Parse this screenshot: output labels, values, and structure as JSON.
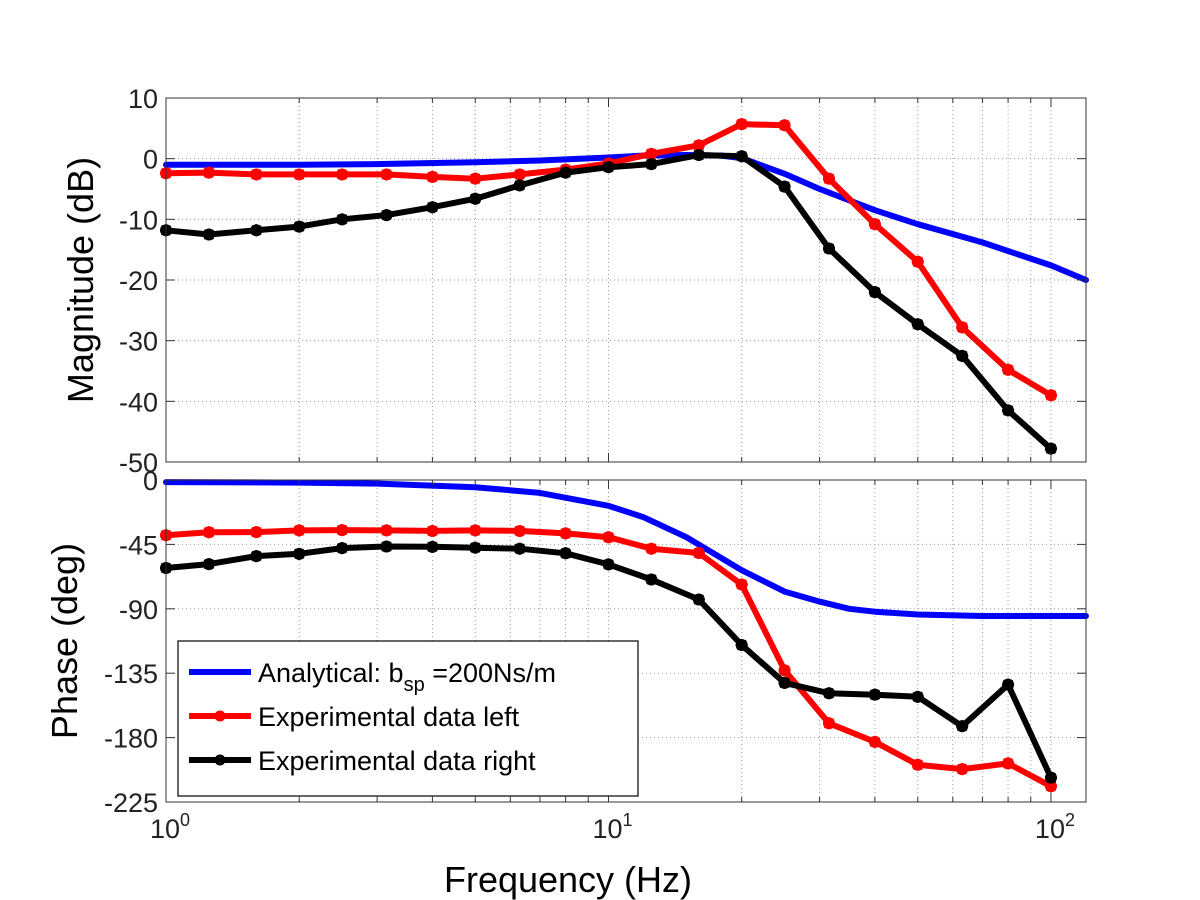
{
  "chart_data": [
    {
      "type": "line",
      "panel": "magnitude",
      "ylabel": "Magnitude (dB)",
      "xlabel": "",
      "xscale": "log",
      "xlim": [
        1,
        120
      ],
      "ylim": [
        -50,
        10
      ],
      "yticks": [
        10,
        0,
        -10,
        -20,
        -30,
        -40,
        -50
      ],
      "grid": true,
      "series": [
        {
          "name": "Analytical: b_sp =200Ns/m",
          "color": "#0000ff",
          "markers": false,
          "points": [
            [
              1,
              -1.0
            ],
            [
              2,
              -1.0
            ],
            [
              3,
              -0.9
            ],
            [
              5,
              -0.6
            ],
            [
              7,
              -0.3
            ],
            [
              10,
              0.2
            ],
            [
              12,
              0.5
            ],
            [
              15,
              0.6
            ],
            [
              18,
              0.5
            ],
            [
              20,
              0.1
            ],
            [
              25,
              -2.5
            ],
            [
              30,
              -5.0
            ],
            [
              40,
              -8.5
            ],
            [
              50,
              -10.8
            ],
            [
              70,
              -13.8
            ],
            [
              100,
              -17.6
            ],
            [
              120,
              -20.0
            ]
          ]
        },
        {
          "name": "Experimental data left",
          "color": "#ff0000",
          "markers": true,
          "points": [
            [
              1,
              -2.4
            ],
            [
              1.25,
              -2.3
            ],
            [
              1.6,
              -2.6
            ],
            [
              2,
              -2.6
            ],
            [
              2.5,
              -2.6
            ],
            [
              3.15,
              -2.6
            ],
            [
              4,
              -3.0
            ],
            [
              5,
              -3.3
            ],
            [
              6.3,
              -2.6
            ],
            [
              8,
              -1.8
            ],
            [
              10,
              -0.8
            ],
            [
              12.5,
              0.8
            ],
            [
              16,
              2.2
            ],
            [
              20,
              5.7
            ],
            [
              25,
              5.5
            ],
            [
              31.5,
              -3.3
            ],
            [
              40,
              -10.8
            ],
            [
              50,
              -17.0
            ],
            [
              63,
              -27.8
            ],
            [
              80,
              -34.8
            ],
            [
              100,
              -39.0
            ]
          ]
        },
        {
          "name": "Experimental data right",
          "color": "#000000",
          "markers": true,
          "points": [
            [
              1,
              -11.8
            ],
            [
              1.25,
              -12.5
            ],
            [
              1.6,
              -11.8
            ],
            [
              2,
              -11.2
            ],
            [
              2.5,
              -10.0
            ],
            [
              3.15,
              -9.3
            ],
            [
              4,
              -8.0
            ],
            [
              5,
              -6.6
            ],
            [
              6.3,
              -4.4
            ],
            [
              8,
              -2.3
            ],
            [
              10,
              -1.4
            ],
            [
              12.5,
              -0.9
            ],
            [
              16,
              0.6
            ],
            [
              20,
              0.4
            ],
            [
              25,
              -4.6
            ],
            [
              31.5,
              -14.8
            ],
            [
              40,
              -22.0
            ],
            [
              50,
              -27.3
            ],
            [
              63,
              -32.5
            ],
            [
              80,
              -41.5
            ],
            [
              100,
              -47.8
            ]
          ]
        }
      ]
    },
    {
      "type": "line",
      "panel": "phase",
      "ylabel": "Phase (deg)",
      "xlabel": "Frequency  (Hz)",
      "xscale": "log",
      "xlim": [
        1,
        120
      ],
      "ylim": [
        -225,
        0
      ],
      "yticks": [
        0,
        -45,
        -90,
        -135,
        -180,
        -225
      ],
      "xticks": [
        {
          "value": 1,
          "base": "10",
          "exp": "0"
        },
        {
          "value": 10,
          "base": "10",
          "exp": "1"
        },
        {
          "value": 100,
          "base": "10",
          "exp": "2"
        }
      ],
      "grid": true,
      "series": [
        {
          "name": "Analytical: b_sp =200Ns/m",
          "color": "#0000ff",
          "markers": false,
          "points": [
            [
              1,
              -1.5
            ],
            [
              2,
              -1.8
            ],
            [
              3,
              -2.5
            ],
            [
              5,
              -5
            ],
            [
              7,
              -9
            ],
            [
              10,
              -18
            ],
            [
              12,
              -26
            ],
            [
              15,
              -40
            ],
            [
              20,
              -63
            ],
            [
              25,
              -78
            ],
            [
              30,
              -85
            ],
            [
              35,
              -90
            ],
            [
              40,
              -92
            ],
            [
              50,
              -94
            ],
            [
              70,
              -95
            ],
            [
              100,
              -95
            ],
            [
              120,
              -95
            ]
          ]
        },
        {
          "name": "Experimental data left",
          "color": "#ff0000",
          "markers": true,
          "points": [
            [
              1,
              -38.6
            ],
            [
              1.25,
              -36.5
            ],
            [
              1.6,
              -36.4
            ],
            [
              2,
              -35.2
            ],
            [
              2.5,
              -35.0
            ],
            [
              3.15,
              -35.2
            ],
            [
              4,
              -35.6
            ],
            [
              5,
              -35.2
            ],
            [
              6.3,
              -35.6
            ],
            [
              8,
              -37.3
            ],
            [
              10,
              -40.0
            ],
            [
              12.5,
              -48.0
            ],
            [
              16,
              -51.0
            ],
            [
              20,
              -73.0
            ],
            [
              25,
              -133.0
            ],
            [
              31.5,
              -170.0
            ],
            [
              40,
              -183.0
            ],
            [
              50,
              -199.0
            ],
            [
              63,
              -202.0
            ],
            [
              80,
              -198.0
            ],
            [
              100,
              -214.0
            ]
          ]
        },
        {
          "name": "Experimental data right",
          "color": "#000000",
          "markers": true,
          "points": [
            [
              1,
              -61.5
            ],
            [
              1.25,
              -58.8
            ],
            [
              1.6,
              -53.2
            ],
            [
              2,
              -51.6
            ],
            [
              2.5,
              -47.6
            ],
            [
              3.15,
              -46.5
            ],
            [
              4,
              -46.7
            ],
            [
              5,
              -47.3
            ],
            [
              6.3,
              -48.0
            ],
            [
              8,
              -51.2
            ],
            [
              10,
              -59.0
            ],
            [
              12.5,
              -69.5
            ],
            [
              16,
              -83.5
            ],
            [
              20,
              -115.3
            ],
            [
              25,
              -141.8
            ],
            [
              31.5,
              -149.0
            ],
            [
              40,
              -150.0
            ],
            [
              50,
              -151.5
            ],
            [
              63,
              -172.0
            ],
            [
              80,
              -143.0
            ],
            [
              100,
              -208.0
            ]
          ]
        }
      ]
    }
  ],
  "legend": {
    "placement": "lower-left",
    "items": [
      {
        "label": "Analytical: b",
        "sub": "sp",
        "after": " =200Ns/m",
        "color": "#0000ff",
        "marker": false
      },
      {
        "label": "Experimental data left",
        "sub": "",
        "after": "",
        "color": "#ff0000",
        "marker": true
      },
      {
        "label": "Experimental data right",
        "sub": "",
        "after": "",
        "color": "#000000",
        "marker": true
      }
    ]
  }
}
